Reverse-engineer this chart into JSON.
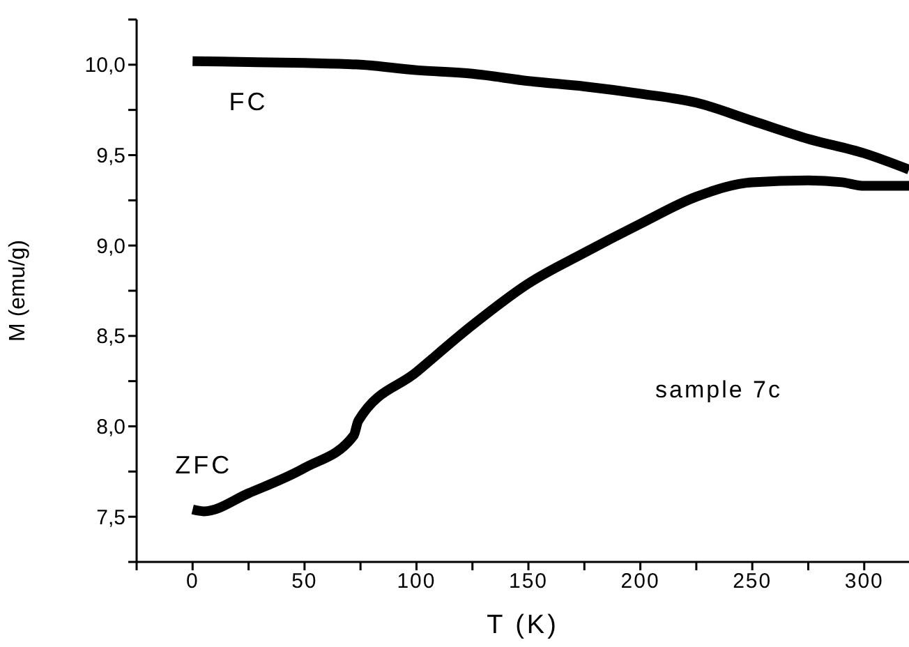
{
  "chart_data": {
    "type": "line",
    "xlabel": "T (K)",
    "ylabel": "M (emu/g)",
    "xlim": [
      -25,
      320
    ],
    "ylim": [
      7.25,
      10.25
    ],
    "xticks": [
      {
        "value": -25,
        "label": null
      },
      0,
      {
        "value": 25,
        "label": null
      },
      50,
      {
        "value": 75,
        "label": null
      },
      100,
      {
        "value": 125,
        "label": null
      },
      150,
      {
        "value": 175,
        "label": null
      },
      200,
      {
        "value": 225,
        "label": null
      },
      250,
      {
        "value": 275,
        "label": null
      },
      300
    ],
    "yticks": [
      {
        "value": 7.25,
        "label": null
      },
      {
        "value": 7.5,
        "label": "7,5"
      },
      {
        "value": 7.75,
        "label": null
      },
      {
        "value": 8,
        "label": "8,0"
      },
      {
        "value": 8.25,
        "label": null
      },
      {
        "value": 8.5,
        "label": "8,5"
      },
      {
        "value": 8.75,
        "label": null
      },
      {
        "value": 9,
        "label": "9,0"
      },
      {
        "value": 9.25,
        "label": null
      },
      {
        "value": 9.5,
        "label": "9,5"
      },
      {
        "value": 9.75,
        "label": null
      },
      {
        "value": 10,
        "label": "10,0"
      },
      {
        "value": 10.25,
        "label": null
      }
    ],
    "grid": false,
    "legend": false,
    "marker": "none",
    "line_style": "solid",
    "series": [
      {
        "name": "FC",
        "color": "#000000",
        "x": [
          0,
          25,
          50,
          75,
          100,
          125,
          150,
          175,
          200,
          225,
          250,
          275,
          300,
          320
        ],
        "values": [
          10.02,
          10.015,
          10.01,
          10.0,
          9.97,
          9.95,
          9.91,
          9.88,
          9.84,
          9.79,
          9.69,
          9.59,
          9.51,
          9.42
        ]
      },
      {
        "name": "ZFC",
        "color": "#000000",
        "x": [
          0,
          5,
          25,
          50,
          72,
          74,
          100,
          125,
          150,
          175,
          200,
          225,
          250,
          275,
          290,
          300,
          320
        ],
        "values": [
          7.54,
          7.53,
          7.63,
          7.77,
          7.95,
          8.03,
          8.3,
          8.56,
          8.79,
          8.96,
          9.12,
          9.27,
          9.35,
          9.36,
          9.35,
          9.33,
          9.33
        ]
      }
    ],
    "annotations": [
      "sample 7c"
    ]
  }
}
